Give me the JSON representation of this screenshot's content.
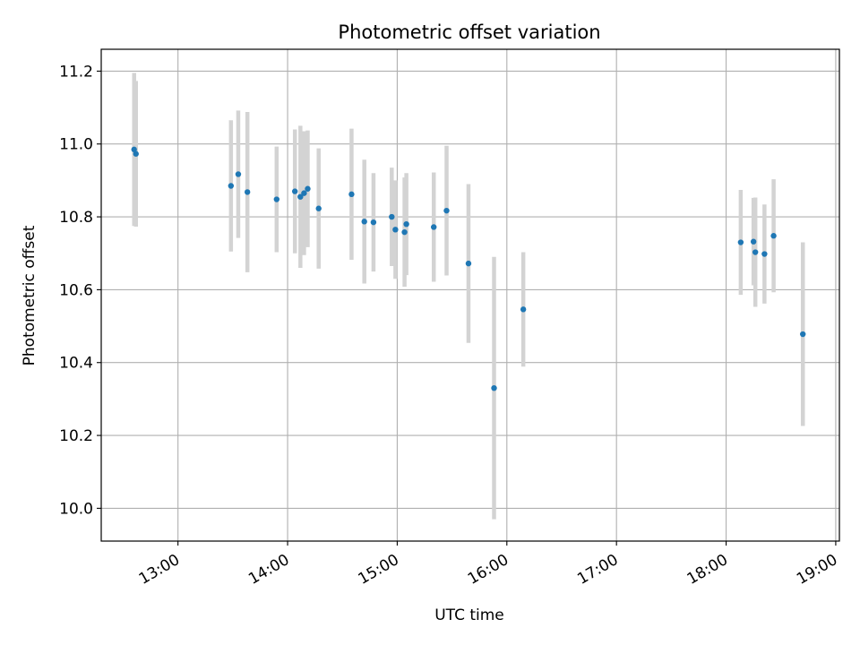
{
  "chart_data": {
    "type": "scatter",
    "title": "Photometric offset variation",
    "xlabel": "UTC time",
    "ylabel": "Photometric offset",
    "x_ticks": [
      "13:00",
      "14:00",
      "15:00",
      "16:00",
      "17:00",
      "18:00",
      "19:00"
    ],
    "y_ticks": [
      "10.0",
      "10.2",
      "10.4",
      "10.6",
      "10.8",
      "11.0",
      "11.2"
    ],
    "xlim": [
      "12:18",
      "19:02"
    ],
    "ylim": [
      9.91,
      11.26
    ],
    "grid": true,
    "colors": {
      "point": "#1f77b4",
      "errorbar": "#d3d3d3",
      "grid": "#b0b0b0"
    },
    "series": [
      {
        "points": [
          {
            "x": "12:36",
            "y": 10.985,
            "err": 0.21
          },
          {
            "x": "12:37",
            "y": 10.973,
            "err": 0.2
          },
          {
            "x": "13:29",
            "y": 10.885,
            "err": 0.18
          },
          {
            "x": "13:33",
            "y": 10.917,
            "err": 0.175
          },
          {
            "x": "13:38",
            "y": 10.868,
            "err": 0.22
          },
          {
            "x": "13:54",
            "y": 10.848,
            "err": 0.145
          },
          {
            "x": "14:04",
            "y": 10.87,
            "err": 0.17
          },
          {
            "x": "14:07",
            "y": 10.855,
            "err": 0.195
          },
          {
            "x": "14:09",
            "y": 10.865,
            "err": 0.17
          },
          {
            "x": "14:11",
            "y": 10.877,
            "err": 0.16
          },
          {
            "x": "14:17",
            "y": 10.823,
            "err": 0.165
          },
          {
            "x": "14:35",
            "y": 10.862,
            "err": 0.18
          },
          {
            "x": "14:42",
            "y": 10.787,
            "err": 0.17
          },
          {
            "x": "14:47",
            "y": 10.785,
            "err": 0.135
          },
          {
            "x": "14:57",
            "y": 10.8,
            "err": 0.135
          },
          {
            "x": "14:59",
            "y": 10.765,
            "err": 0.135
          },
          {
            "x": "15:04",
            "y": 10.758,
            "err": 0.15
          },
          {
            "x": "15:05",
            "y": 10.78,
            "err": 0.14
          },
          {
            "x": "15:20",
            "y": 10.772,
            "err": 0.15
          },
          {
            "x": "15:27",
            "y": 10.817,
            "err": 0.178
          },
          {
            "x": "15:39",
            "y": 10.672,
            "err": 0.218
          },
          {
            "x": "15:53",
            "y": 10.33,
            "err": 0.36
          },
          {
            "x": "16:09",
            "y": 10.546,
            "err": 0.157
          },
          {
            "x": "18:08",
            "y": 10.73,
            "err": 0.144
          },
          {
            "x": "18:15",
            "y": 10.732,
            "err": 0.12
          },
          {
            "x": "18:16",
            "y": 10.703,
            "err": 0.15
          },
          {
            "x": "18:21",
            "y": 10.698,
            "err": 0.136
          },
          {
            "x": "18:26",
            "y": 10.748,
            "err": 0.155
          },
          {
            "x": "18:42",
            "y": 10.478,
            "err": 0.252
          }
        ]
      }
    ]
  }
}
